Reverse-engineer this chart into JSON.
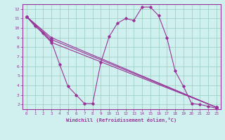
{
  "xlabel": "Windchill (Refroidissement éolien,°C)",
  "bg_color": "#cff0ee",
  "grid_color": "#99ccbb",
  "line_color": "#993399",
  "xlim": [
    -0.5,
    23.5
  ],
  "ylim": [
    1.5,
    12.5
  ],
  "yticks": [
    2,
    3,
    4,
    5,
    6,
    7,
    8,
    9,
    10,
    11,
    12
  ],
  "xticks": [
    0,
    1,
    2,
    3,
    4,
    5,
    6,
    7,
    8,
    9,
    10,
    11,
    12,
    13,
    14,
    15,
    16,
    17,
    18,
    19,
    20,
    21,
    22,
    23
  ],
  "lines": [
    {
      "x": [
        0,
        1,
        2,
        3,
        4,
        5,
        6,
        7,
        8,
        9,
        10,
        11,
        12,
        13,
        14,
        15,
        16,
        17,
        18,
        19,
        20,
        21,
        22,
        23
      ],
      "y": [
        11.2,
        10.2,
        9.5,
        8.6,
        6.2,
        3.9,
        3.0,
        2.1,
        2.1,
        6.4,
        9.1,
        10.5,
        11.0,
        10.8,
        12.2,
        12.2,
        11.3,
        9.0,
        5.5,
        3.9,
        2.1,
        2.0,
        1.8,
        1.6
      ]
    },
    {
      "x": [
        0,
        3,
        23
      ],
      "y": [
        11.2,
        9.0,
        1.7
      ]
    },
    {
      "x": [
        0,
        3,
        23
      ],
      "y": [
        11.2,
        8.8,
        1.7
      ]
    },
    {
      "x": [
        0,
        3,
        23
      ],
      "y": [
        11.2,
        8.5,
        1.7
      ]
    }
  ]
}
